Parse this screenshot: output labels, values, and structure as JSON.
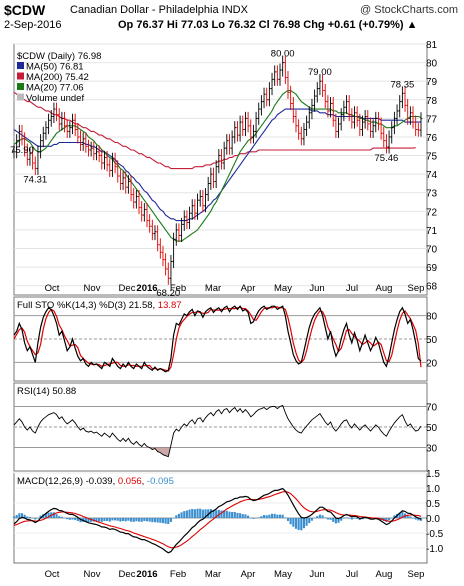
{
  "header": {
    "symbol": "$CDW",
    "name": "Canadian Dollar - Philadelphia INDX",
    "watermark": "@ StockCharts.com",
    "date": "2-Sep-2016",
    "quote": "Op 76.37  Hi 77.03  Lo 76.32  Cl 76.98  Chg +0.61 (+0.79%) ▲"
  },
  "colors": {
    "up": "#000000",
    "down": "#e00000",
    "ma50": "#1f2a9a",
    "ma200": "#c41e3a",
    "ma20": "#1a7a1a",
    "stoK": "#000000",
    "stoD": "#e00000",
    "macd": "#000000",
    "signal": "#e00000",
    "hist": "#3a8fd0"
  },
  "legend": {
    "price": "$CDW (Daily) 76.98",
    "ma50": "MA(50) 76.81",
    "ma200": "MA(200) 75.42",
    "ma20": "MA(20) 77.06",
    "volume": "Volume undef"
  },
  "indicator_labels": {
    "sto_prefix": "Full STO %K(14,3) %D(3) ",
    "sto_k": "21.58",
    "sto_d": "13.87",
    "rsi": "RSI(14) 50.88",
    "macd_prefix": "MACD(12,26,9) ",
    "macd_val": "-0.039",
    "macd_sig": "0.056",
    "macd_hist": "-0.095"
  },
  "chart_data": {
    "type": "line",
    "x_labels": [
      "Oct",
      "Nov",
      "Dec",
      "2016",
      "Feb",
      "Mar",
      "Apr",
      "May",
      "Jun",
      "Jul",
      "Aug",
      "Sep"
    ],
    "price_axis": {
      "ylim": [
        67.5,
        81
      ],
      "ticks": [
        68,
        69,
        70,
        71,
        72,
        73,
        74,
        75,
        76,
        77,
        78,
        79,
        80,
        81
      ]
    },
    "annotations": [
      {
        "text": "74.31",
        "value": 74.31
      },
      {
        "text": "68.20",
        "value": 68.2
      },
      {
        "text": "80.00",
        "value": 80.0
      },
      {
        "text": "79.00",
        "value": 79.0
      },
      {
        "text": "75.90",
        "value": 75.9
      },
      {
        "text": "78.35",
        "value": 78.35
      },
      {
        "text": "75.46",
        "value": 75.46
      }
    ],
    "price_close": [
      75.2,
      75.8,
      76.3,
      75.9,
      75.3,
      74.8,
      75.1,
      74.6,
      74.31,
      75.2,
      75.8,
      76.2,
      76.5,
      76.9,
      77.1,
      77.5,
      77.2,
      76.7,
      77.0,
      76.6,
      76.3,
      76.5,
      76.9,
      76.4,
      76.0,
      75.6,
      75.9,
      75.5,
      75.3,
      75.4,
      75.1,
      75.2,
      75.0,
      74.6,
      74.9,
      74.5,
      74.2,
      74.8,
      74.4,
      73.9,
      73.5,
      73.8,
      73.3,
      73.6,
      72.9,
      72.5,
      72.8,
      72.2,
      71.8,
      72.1,
      71.5,
      71.2,
      70.8,
      70.9,
      70.2,
      69.8,
      69.4,
      68.9,
      68.4,
      69.3,
      70.5,
      71.0,
      70.7,
      71.3,
      71.7,
      71.4,
      71.9,
      72.3,
      71.9,
      72.6,
      72.8,
      72.3,
      72.9,
      73.5,
      74.0,
      73.6,
      74.4,
      75.0,
      74.6,
      75.4,
      75.8,
      75.4,
      76.0,
      76.5,
      76.1,
      76.8,
      76.4,
      77.0,
      76.6,
      76.0,
      76.3,
      77.0,
      77.5,
      77.9,
      78.3,
      78.0,
      78.6,
      79.1,
      79.5,
      79.1,
      79.6,
      80.0,
      79.2,
      78.4,
      77.8,
      77.1,
      76.6,
      76.2,
      75.9,
      76.4,
      76.8,
      77.3,
      77.7,
      78.2,
      78.6,
      79.0,
      78.5,
      77.9,
      77.4,
      77.8,
      76.9,
      76.3,
      76.7,
      77.2,
      77.6,
      77.9,
      77.2,
      76.8,
      77.3,
      76.9,
      76.4,
      76.8,
      77.1,
      76.7,
      76.3,
      76.6,
      77.0,
      76.7,
      76.2,
      75.8,
      75.46,
      76.0,
      76.5,
      77.0,
      77.4,
      77.9,
      78.35,
      77.7,
      77.0,
      77.3,
      76.8,
      76.4,
      76.37,
      76.98
    ],
    "ma20": [
      75.6,
      75.7,
      75.8,
      75.9,
      75.9,
      75.8,
      75.7,
      75.5,
      75.3,
      75.2,
      75.2,
      75.3,
      75.4,
      75.6,
      75.8,
      76.0,
      76.2,
      76.3,
      76.4,
      76.5,
      76.6,
      76.6,
      76.6,
      76.6,
      76.5,
      76.4,
      76.3,
      76.2,
      76.0,
      75.9,
      75.8,
      75.6,
      75.5,
      75.3,
      75.2,
      75.0,
      74.9,
      74.8,
      74.6,
      74.5,
      74.3,
      74.2,
      74.0,
      73.8,
      73.6,
      73.4,
      73.2,
      73.0,
      72.8,
      72.6,
      72.4,
      72.2,
      72.0,
      71.8,
      71.6,
      71.4,
      71.2,
      71.0,
      70.8,
      70.6,
      70.5,
      70.4,
      70.4,
      70.4,
      70.5,
      70.6,
      70.7,
      70.8,
      70.9,
      71.0,
      71.2,
      71.4,
      71.6,
      71.8,
      72.0,
      72.3,
      72.5,
      72.8,
      73.1,
      73.4,
      73.7,
      74.0,
      74.3,
      74.6,
      74.9,
      75.2,
      75.4,
      75.6,
      75.8,
      75.9,
      76.0,
      76.2,
      76.4,
      76.6,
      76.8,
      77.0,
      77.2,
      77.4,
      77.7,
      77.9,
      78.1,
      78.3,
      78.4,
      78.5,
      78.5,
      78.4,
      78.3,
      78.1,
      77.9,
      77.8,
      77.7,
      77.6,
      77.5,
      77.5,
      77.5,
      77.5,
      77.5,
      77.5,
      77.5,
      77.5,
      77.4,
      77.4,
      77.3,
      77.3,
      77.3,
      77.3,
      77.2,
      77.2,
      77.1,
      77.1,
      77.0,
      77.0,
      76.9,
      76.9,
      76.8,
      76.8,
      76.8,
      76.7,
      76.7,
      76.6,
      76.5,
      76.5,
      76.5,
      76.6,
      76.6,
      76.7,
      76.8,
      76.9,
      77.0,
      77.1,
      77.1,
      77.1,
      77.1,
      77.06
    ],
    "ma50": [
      76.4,
      76.3,
      76.2,
      76.1,
      76.0,
      75.9,
      75.8,
      75.7,
      75.6,
      75.5,
      75.5,
      75.5,
      75.5,
      75.5,
      75.5,
      75.6,
      75.6,
      75.7,
      75.7,
      75.7,
      75.7,
      75.7,
      75.7,
      75.7,
      75.7,
      75.7,
      75.7,
      75.6,
      75.6,
      75.5,
      75.5,
      75.4,
      75.3,
      75.2,
      75.2,
      75.1,
      75.0,
      74.9,
      74.8,
      74.6,
      74.5,
      74.4,
      74.2,
      74.1,
      73.9,
      73.8,
      73.6,
      73.5,
      73.3,
      73.1,
      73.0,
      72.8,
      72.6,
      72.5,
      72.3,
      72.1,
      72.0,
      71.8,
      71.7,
      71.6,
      71.6,
      71.5,
      71.5,
      71.5,
      71.5,
      71.5,
      71.6,
      71.6,
      71.7,
      71.8,
      71.9,
      72.0,
      72.1,
      72.3,
      72.4,
      72.6,
      72.7,
      72.9,
      73.1,
      73.3,
      73.5,
      73.7,
      73.9,
      74.1,
      74.3,
      74.5,
      74.7,
      74.9,
      75.1,
      75.3,
      75.5,
      75.7,
      75.9,
      76.1,
      76.3,
      76.5,
      76.7,
      76.9,
      77.0,
      77.2,
      77.3,
      77.4,
      77.5,
      77.5,
      77.5,
      77.5,
      77.5,
      77.5,
      77.5,
      77.5,
      77.5,
      77.5,
      77.4,
      77.4,
      77.4,
      77.3,
      77.3,
      77.3,
      77.2,
      77.2,
      77.2,
      77.1,
      77.1,
      77.1,
      77.1,
      77.1,
      77.1,
      77.1,
      77.1,
      77.1,
      77.1,
      77.0,
      77.0,
      77.0,
      77.0,
      77.0,
      77.0,
      77.0,
      76.9,
      76.9,
      76.9,
      76.9,
      76.9,
      76.9,
      76.9,
      76.9,
      76.9,
      76.8,
      76.8,
      76.8,
      76.8,
      76.8,
      76.8,
      76.81
    ],
    "ma200": [
      78.4,
      78.3,
      78.2,
      78.1,
      78.0,
      77.9,
      77.9,
      77.8,
      77.7,
      77.6,
      77.6,
      77.5,
      77.4,
      77.4,
      77.3,
      77.2,
      77.2,
      77.1,
      77.0,
      77.0,
      76.9,
      76.9,
      76.8,
      76.7,
      76.7,
      76.6,
      76.5,
      76.5,
      76.4,
      76.3,
      76.3,
      76.2,
      76.1,
      76.1,
      76.0,
      75.9,
      75.9,
      75.8,
      75.7,
      75.7,
      75.6,
      75.5,
      75.5,
      75.4,
      75.3,
      75.3,
      75.2,
      75.1,
      75.1,
      75.0,
      74.9,
      74.9,
      74.8,
      74.7,
      74.6,
      74.6,
      74.5,
      74.4,
      74.4,
      74.3,
      74.3,
      74.3,
      74.3,
      74.3,
      74.3,
      74.3,
      74.3,
      74.3,
      74.4,
      74.4,
      74.4,
      74.4,
      74.5,
      74.5,
      74.5,
      74.6,
      74.6,
      74.7,
      74.7,
      74.8,
      74.8,
      74.9,
      74.9,
      75.0,
      75.0,
      75.1,
      75.1,
      75.1,
      75.2,
      75.2,
      75.2,
      75.2,
      75.3,
      75.3,
      75.3,
      75.3,
      75.3,
      75.3,
      75.3,
      75.3,
      75.3,
      75.3,
      75.3,
      75.3,
      75.3,
      75.3,
      75.3,
      75.3,
      75.3,
      75.3,
      75.3,
      75.3,
      75.3,
      75.3,
      75.3,
      75.3,
      75.3,
      75.3,
      75.3,
      75.3,
      75.3,
      75.3,
      75.3,
      75.3,
      75.3,
      75.3,
      75.3,
      75.3,
      75.3,
      75.3,
      75.3,
      75.3,
      75.3,
      75.3,
      75.3,
      75.4,
      75.4,
      75.4,
      75.4,
      75.4,
      75.4,
      75.4,
      75.4,
      75.4,
      75.4,
      75.4,
      75.4,
      75.4,
      75.4,
      75.4,
      75.4,
      75.42
    ],
    "sto_axis": {
      "ticks": [
        20,
        50,
        80
      ]
    },
    "sto_k": [
      55,
      60,
      70,
      62,
      45,
      35,
      40,
      30,
      20,
      45,
      65,
      78,
      85,
      90,
      88,
      80,
      70,
      55,
      60,
      48,
      35,
      40,
      50,
      38,
      28,
      22,
      25,
      18,
      15,
      20,
      17,
      18,
      15,
      12,
      20,
      18,
      15,
      25,
      20,
      15,
      12,
      18,
      14,
      20,
      15,
      12,
      18,
      15,
      12,
      20,
      15,
      12,
      10,
      14,
      10,
      12,
      10,
      8,
      10,
      25,
      55,
      70,
      68,
      75,
      82,
      80,
      85,
      88,
      80,
      86,
      85,
      78,
      85,
      88,
      90,
      84,
      88,
      90,
      85,
      90,
      92,
      85,
      90,
      92,
      88,
      92,
      86,
      88,
      84,
      70,
      72,
      80,
      86,
      90,
      92,
      88,
      90,
      92,
      92,
      88,
      90,
      92,
      80,
      60,
      45,
      30,
      22,
      18,
      20,
      35,
      50,
      65,
      75,
      82,
      86,
      90,
      80,
      65,
      50,
      60,
      40,
      28,
      35,
      50,
      62,
      70,
      55,
      45,
      58,
      48,
      35,
      45,
      55,
      45,
      35,
      42,
      52,
      45,
      32,
      20,
      15,
      28,
      45,
      62,
      75,
      85,
      90,
      82,
      70,
      75,
      62,
      45,
      25,
      21.58
    ],
    "sto_d": [
      50,
      56,
      62,
      64,
      59,
      47,
      40,
      35,
      30,
      32,
      43,
      63,
      76,
      84,
      88,
      86,
      79,
      68,
      62,
      54,
      48,
      41,
      42,
      43,
      39,
      29,
      25,
      22,
      19,
      18,
      17,
      18,
      17,
      15,
      16,
      17,
      18,
      19,
      20,
      20,
      16,
      15,
      15,
      17,
      16,
      16,
      15,
      15,
      15,
      16,
      16,
      16,
      12,
      12,
      11,
      12,
      11,
      10,
      9,
      14,
      30,
      50,
      64,
      71,
      75,
      79,
      82,
      84,
      84,
      85,
      84,
      83,
      83,
      84,
      88,
      87,
      87,
      87,
      88,
      88,
      89,
      89,
      89,
      89,
      90,
      91,
      89,
      89,
      86,
      81,
      75,
      74,
      79,
      85,
      89,
      90,
      90,
      90,
      91,
      91,
      90,
      90,
      88,
      77,
      62,
      45,
      32,
      23,
      20,
      24,
      35,
      50,
      63,
      74,
      81,
      86,
      85,
      78,
      65,
      58,
      50,
      43,
      34,
      38,
      49,
      61,
      62,
      57,
      53,
      50,
      47,
      43,
      45,
      48,
      45,
      41,
      43,
      46,
      43,
      32,
      22,
      21,
      29,
      45,
      61,
      74,
      83,
      86,
      81,
      76,
      69,
      61,
      44,
      13.87
    ],
    "rsi_axis": {
      "ticks": [
        30,
        50,
        70
      ]
    },
    "rsi": [
      52,
      55,
      58,
      55,
      50,
      47,
      50,
      46,
      44,
      50,
      55,
      58,
      60,
      62,
      63,
      64,
      62,
      58,
      60,
      56,
      53,
      55,
      57,
      54,
      50,
      47,
      49,
      46,
      45,
      46,
      44,
      45,
      43,
      41,
      44,
      42,
      40,
      44,
      41,
      38,
      36,
      39,
      36,
      39,
      35,
      33,
      36,
      33,
      31,
      34,
      31,
      30,
      28,
      29,
      26,
      25,
      23,
      22,
      21,
      32,
      44,
      48,
      46,
      50,
      53,
      51,
      55,
      57,
      53,
      58,
      59,
      55,
      59,
      62,
      64,
      61,
      65,
      67,
      63,
      67,
      68,
      64,
      67,
      69,
      65,
      68,
      64,
      67,
      64,
      60,
      62,
      65,
      67,
      68,
      69,
      67,
      69,
      70,
      70,
      68,
      70,
      71,
      64,
      58,
      54,
      50,
      47,
      45,
      44,
      48,
      51,
      54,
      57,
      59,
      61,
      63,
      59,
      55,
      52,
      55,
      49,
      46,
      49,
      53,
      56,
      57,
      52,
      49,
      53,
      50,
      47,
      50,
      52,
      49,
      46,
      49,
      52,
      50,
      46,
      43,
      41,
      46,
      50,
      54,
      57,
      60,
      62,
      56,
      51,
      53,
      49,
      46,
      47,
      50.88
    ],
    "macd_axis": {
      "ylim": [
        -1.5,
        1.5
      ],
      "ticks": [
        -1.0,
        -0.5,
        0.0,
        0.5,
        1.0,
        1.5
      ]
    },
    "macd": [
      -0.2,
      -0.12,
      -0.02,
      0.02,
      0.0,
      -0.05,
      -0.06,
      -0.1,
      -0.15,
      -0.1,
      0.0,
      0.08,
      0.15,
      0.22,
      0.28,
      0.32,
      0.3,
      0.25,
      0.24,
      0.2,
      0.15,
      0.12,
      0.12,
      0.08,
      0.02,
      -0.05,
      -0.08,
      -0.12,
      -0.16,
      -0.18,
      -0.2,
      -0.22,
      -0.25,
      -0.3,
      -0.3,
      -0.33,
      -0.38,
      -0.36,
      -0.38,
      -0.42,
      -0.47,
      -0.48,
      -0.52,
      -0.52,
      -0.58,
      -0.63,
      -0.64,
      -0.68,
      -0.72,
      -0.72,
      -0.76,
      -0.8,
      -0.85,
      -0.88,
      -0.93,
      -0.98,
      -1.03,
      -1.1,
      -1.16,
      -1.12,
      -1.0,
      -0.88,
      -0.8,
      -0.7,
      -0.6,
      -0.52,
      -0.42,
      -0.32,
      -0.26,
      -0.16,
      -0.08,
      -0.04,
      0.04,
      0.12,
      0.2,
      0.24,
      0.3,
      0.38,
      0.42,
      0.48,
      0.54,
      0.56,
      0.6,
      0.65,
      0.66,
      0.7,
      0.7,
      0.72,
      0.7,
      0.62,
      0.58,
      0.6,
      0.64,
      0.7,
      0.76,
      0.78,
      0.82,
      0.88,
      0.92,
      0.92,
      0.95,
      0.98,
      0.9,
      0.76,
      0.6,
      0.44,
      0.28,
      0.14,
      0.02,
      0.0,
      0.02,
      0.06,
      0.12,
      0.2,
      0.28,
      0.36,
      0.36,
      0.3,
      0.22,
      0.2,
      0.1,
      0.0,
      -0.02,
      0.02,
      0.08,
      0.12,
      0.08,
      0.04,
      0.06,
      0.04,
      -0.02,
      0.0,
      0.02,
      0.0,
      -0.04,
      -0.04,
      -0.02,
      -0.04,
      -0.1,
      -0.16,
      -0.22,
      -0.18,
      -0.1,
      0.0,
      0.08,
      0.16,
      0.24,
      0.22,
      0.16,
      0.15,
      0.1,
      0.04,
      0.0,
      -0.039
    ],
    "macd_signal": [
      -0.25,
      -0.22,
      -0.18,
      -0.14,
      -0.11,
      -0.1,
      -0.09,
      -0.09,
      -0.1,
      -0.1,
      -0.08,
      -0.05,
      -0.01,
      0.04,
      0.09,
      0.13,
      0.17,
      0.19,
      0.2,
      0.2,
      0.19,
      0.18,
      0.17,
      0.15,
      0.12,
      0.09,
      0.05,
      0.02,
      -0.02,
      -0.05,
      -0.08,
      -0.11,
      -0.14,
      -0.17,
      -0.2,
      -0.23,
      -0.26,
      -0.28,
      -0.3,
      -0.33,
      -0.35,
      -0.38,
      -0.41,
      -0.43,
      -0.46,
      -0.5,
      -0.53,
      -0.56,
      -0.59,
      -0.62,
      -0.65,
      -0.68,
      -0.71,
      -0.74,
      -0.78,
      -0.82,
      -0.86,
      -0.91,
      -0.96,
      -0.99,
      -0.99,
      -0.97,
      -0.94,
      -0.89,
      -0.83,
      -0.77,
      -0.7,
      -0.62,
      -0.55,
      -0.47,
      -0.39,
      -0.32,
      -0.25,
      -0.17,
      -0.1,
      -0.03,
      0.04,
      0.11,
      0.17,
      0.23,
      0.3,
      0.35,
      0.4,
      0.45,
      0.49,
      0.54,
      0.57,
      0.6,
      0.62,
      0.62,
      0.61,
      0.61,
      0.62,
      0.64,
      0.66,
      0.69,
      0.71,
      0.74,
      0.78,
      0.81,
      0.84,
      0.87,
      0.88,
      0.86,
      0.81,
      0.73,
      0.64,
      0.54,
      0.43,
      0.34,
      0.28,
      0.23,
      0.21,
      0.2,
      0.22,
      0.25,
      0.27,
      0.28,
      0.27,
      0.26,
      0.23,
      0.18,
      0.14,
      0.11,
      0.1,
      0.1,
      0.1,
      0.09,
      0.08,
      0.07,
      0.05,
      0.04,
      0.03,
      0.02,
      0.01,
      0.0,
      -0.0,
      -0.01,
      -0.03,
      -0.06,
      -0.09,
      -0.11,
      -0.11,
      -0.09,
      -0.06,
      -0.02,
      0.03,
      0.07,
      0.09,
      0.1,
      0.1,
      0.09,
      0.08,
      0.056
    ]
  }
}
